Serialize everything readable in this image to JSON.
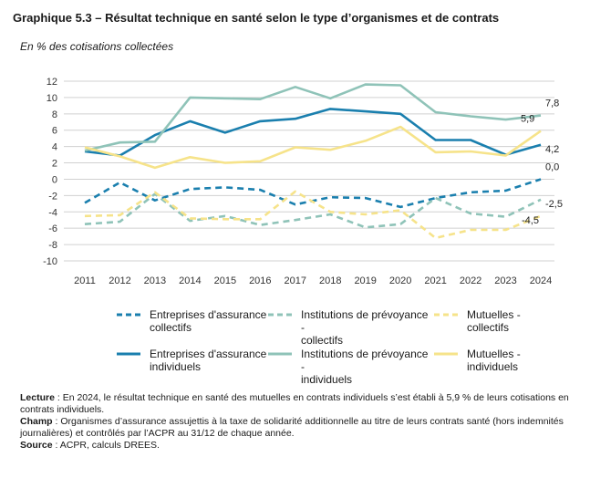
{
  "header": {
    "title": "Graphique 5.3 – Résultat technique en santé selon le type d’organismes et de contrats",
    "subtitle": "En % des cotisations collectées"
  },
  "colors": {
    "entreprises": "#1a7fae",
    "institutions": "#8fc3b8",
    "mutuelles": "#f6e38a",
    "grid": "#d0d0d0",
    "axis_text": "#333333"
  },
  "chart_data": {
    "type": "line",
    "x": [
      "2011",
      "2012",
      "2013",
      "2014",
      "2015",
      "2016",
      "2017",
      "2018",
      "2019",
      "2020",
      "2021",
      "2022",
      "2023",
      "2024"
    ],
    "ylim": [
      -10,
      12
    ],
    "yticks": [
      -10,
      -8,
      -6,
      -4,
      -2,
      0,
      2,
      4,
      6,
      8,
      10,
      12
    ],
    "grid": "horizontal",
    "legend_position": "bottom",
    "series": [
      {
        "name": "Entreprises d'assurance - collectifs",
        "style": "dashed",
        "color_key": "entreprises",
        "values": [
          -2.9,
          -0.4,
          -2.6,
          -1.2,
          -1.0,
          -1.3,
          -3.1,
          -2.2,
          -2.3,
          -3.4,
          -2.3,
          -1.6,
          -1.4,
          0.0
        ]
      },
      {
        "name": "Institutions de prévoyance - collectifs",
        "style": "dashed",
        "color_key": "institutions",
        "values": [
          -5.5,
          -5.2,
          -1.8,
          -5.1,
          -4.5,
          -5.6,
          -5.0,
          -4.3,
          -5.9,
          -5.5,
          -2.3,
          -4.2,
          -4.6,
          -2.5
        ]
      },
      {
        "name": "Mutuelles - collectifs",
        "style": "dashed",
        "color_key": "mutuelles",
        "values": [
          -4.5,
          -4.4,
          -1.6,
          -4.8,
          -4.9,
          -4.9,
          -1.5,
          -4.0,
          -4.3,
          -3.8,
          -7.2,
          -6.2,
          -6.2,
          -4.5
        ]
      },
      {
        "name": "Entreprises d'assurance - individuels",
        "style": "solid",
        "color_key": "entreprises",
        "values": [
          3.4,
          2.9,
          5.4,
          7.1,
          5.7,
          7.1,
          7.4,
          8.6,
          8.3,
          8.0,
          4.8,
          4.8,
          3.0,
          4.2
        ]
      },
      {
        "name": "Institutions de prévoyance - individuels",
        "style": "solid",
        "color_key": "institutions",
        "values": [
          3.5,
          4.5,
          4.6,
          10.0,
          9.9,
          9.8,
          11.3,
          9.9,
          11.6,
          11.5,
          8.2,
          7.7,
          7.3,
          7.8
        ]
      },
      {
        "name": "Mutuelles - individuels",
        "style": "solid",
        "color_key": "mutuelles",
        "values": [
          3.9,
          2.8,
          1.4,
          2.7,
          2.0,
          2.2,
          3.9,
          3.6,
          4.7,
          6.4,
          3.3,
          3.4,
          2.9,
          5.9
        ]
      }
    ],
    "end_labels": [
      "7,8",
      "5,9",
      "4,2",
      "0,0",
      "-2,5",
      "-4,5"
    ]
  },
  "legend": [
    {
      "line1": "Entreprises d'assurance -",
      "line2": "collectifs"
    },
    {
      "line1": "Institutions de prévoyance -",
      "line2": "collectifs"
    },
    {
      "line1": "Mutuelles -",
      "line2": "collectifs"
    },
    {
      "line1": "Entreprises d'assurance -",
      "line2": "individuels"
    },
    {
      "line1": "Institutions de prévoyance -",
      "line2": "individuels"
    },
    {
      "line1": "Mutuelles -",
      "line2": "individuels"
    }
  ],
  "notes": {
    "lecture_label": "Lecture",
    "lecture_text": " : En 2024, le résultat technique en santé des mutuelles en contrats individuels s’est établi à 5,9 % de leurs cotisations en contrats individuels.",
    "champ_label": "Champ",
    "champ_text": " : Organismes d’assurance assujettis à la taxe de solidarité additionnelle au titre de leurs contrats santé (hors indemnités journalières) et contrôlés par l’ACPR au 31/12 de chaque année.",
    "source_label": "Source",
    "source_text": " : ACPR, calculs DREES."
  }
}
